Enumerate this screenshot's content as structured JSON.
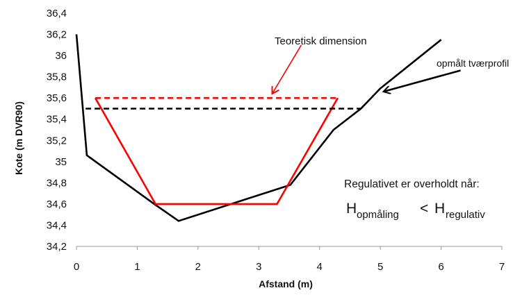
{
  "chart_data": {
    "type": "line",
    "title": "",
    "xlabel": "Afstand (m)",
    "ylabel": "Kote (m DVR90)",
    "xlim": [
      0,
      7
    ],
    "ylim": [
      34.2,
      36.4
    ],
    "x_ticks": [
      0,
      1,
      2,
      3,
      4,
      5,
      6,
      7
    ],
    "y_ticks": [
      34.2,
      34.4,
      34.6,
      34.8,
      35,
      35.2,
      35.4,
      35.6,
      35.8,
      36,
      36.2,
      36.4
    ],
    "x_tick_labels": [
      "0",
      "1",
      "2",
      "3",
      "4",
      "5",
      "6",
      "7"
    ],
    "y_tick_labels": [
      "34,2",
      "34,4",
      "34,6",
      "34,8",
      "35",
      "35,2",
      "35,4",
      "35,6",
      "35,8",
      "36",
      "36,2",
      "36,4"
    ],
    "grid": false,
    "legend": "none",
    "series": [
      {
        "style": "solid",
        "color": "#000000",
        "points": [
          [
            0.0,
            36.2
          ],
          [
            0.17,
            35.06
          ],
          [
            1.28,
            34.6
          ],
          [
            1.68,
            34.44
          ],
          [
            3.52,
            34.78
          ],
          [
            4.23,
            35.3
          ],
          [
            4.68,
            35.5
          ],
          [
            5.0,
            35.69
          ],
          [
            6.0,
            36.15
          ]
        ]
      },
      {
        "style": "solid",
        "color": "#ff0000",
        "points": [
          [
            0.31,
            35.6
          ],
          [
            1.3,
            34.6
          ],
          [
            3.3,
            34.6
          ],
          [
            4.3,
            35.6
          ]
        ]
      },
      {
        "style": "dashed",
        "color": "#ff0000",
        "points": [
          [
            0.31,
            35.6
          ],
          [
            4.3,
            35.6
          ]
        ]
      },
      {
        "style": "dashed",
        "color": "#000000",
        "points": [
          [
            0.15,
            35.5
          ],
          [
            4.68,
            35.5
          ]
        ]
      }
    ],
    "annotations": [
      {
        "text": "Teoretisk dimension",
        "color": "#ff0000",
        "arrow_from": [
          3.7,
          36.1
        ],
        "arrow_to": [
          3.22,
          35.64
        ]
      },
      {
        "text": "opmålt tværprofil",
        "color": "#000000",
        "arrow_from": [
          6.32,
          35.86
        ],
        "arrow_to": [
          5.05,
          35.66
        ]
      }
    ]
  },
  "condition": {
    "title": "Regulativet er overholdt når:",
    "h1": "H",
    "sub1": "opmåling",
    "operator": "<",
    "h2": "H",
    "sub2": "regulativ"
  }
}
